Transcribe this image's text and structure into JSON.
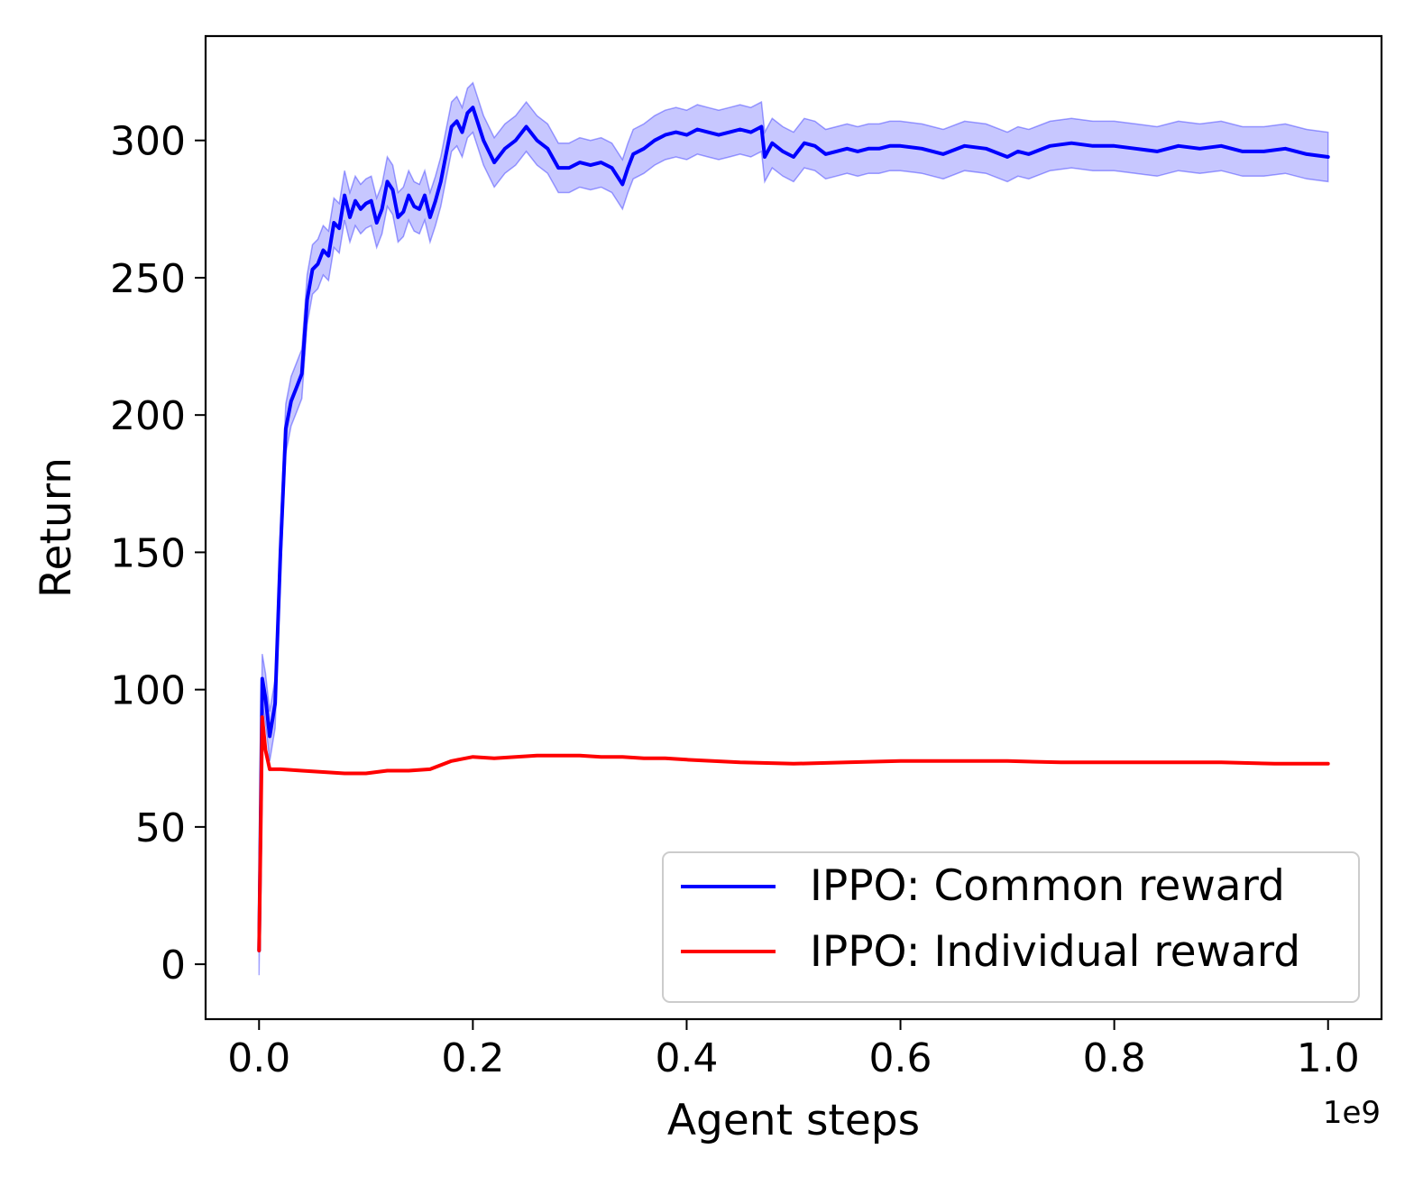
{
  "chart_data": {
    "type": "line",
    "xlabel": "Agent steps",
    "ylabel": "Return",
    "x_offset_text": "1e9",
    "xlim": [
      -0.05,
      1.05
    ],
    "ylim": [
      -20,
      338
    ],
    "x_ticks": [
      0.0,
      0.2,
      0.4,
      0.6,
      0.8,
      1.0
    ],
    "x_tick_labels": [
      "0.0",
      "0.2",
      "0.4",
      "0.6",
      "0.8",
      "1.0"
    ],
    "y_ticks": [
      0,
      50,
      100,
      150,
      200,
      250,
      300
    ],
    "y_tick_labels": [
      "0",
      "50",
      "100",
      "150",
      "200",
      "250",
      "300"
    ],
    "grid": false,
    "legend_position": "lower-right",
    "series": [
      {
        "name": "IPPO: Common reward",
        "color": "#0000ff",
        "band_color": "#0000ff",
        "band_opacity": 0.22,
        "band_halfwidth": 9,
        "x": [
          0.0,
          0.003,
          0.006,
          0.01,
          0.015,
          0.02,
          0.025,
          0.03,
          0.035,
          0.04,
          0.045,
          0.05,
          0.055,
          0.06,
          0.065,
          0.07,
          0.075,
          0.08,
          0.085,
          0.09,
          0.095,
          0.1,
          0.105,
          0.11,
          0.115,
          0.12,
          0.125,
          0.13,
          0.135,
          0.14,
          0.145,
          0.15,
          0.155,
          0.16,
          0.165,
          0.17,
          0.175,
          0.18,
          0.185,
          0.19,
          0.195,
          0.2,
          0.21,
          0.22,
          0.23,
          0.24,
          0.25,
          0.26,
          0.27,
          0.28,
          0.29,
          0.3,
          0.31,
          0.32,
          0.33,
          0.34,
          0.345,
          0.35,
          0.36,
          0.37,
          0.38,
          0.39,
          0.4,
          0.41,
          0.42,
          0.43,
          0.44,
          0.45,
          0.46,
          0.47,
          0.473,
          0.48,
          0.49,
          0.5,
          0.51,
          0.52,
          0.53,
          0.54,
          0.55,
          0.56,
          0.57,
          0.58,
          0.59,
          0.6,
          0.62,
          0.64,
          0.66,
          0.68,
          0.7,
          0.71,
          0.72,
          0.74,
          0.76,
          0.78,
          0.8,
          0.82,
          0.84,
          0.86,
          0.88,
          0.9,
          0.92,
          0.94,
          0.96,
          0.98,
          1.0
        ],
        "y": [
          5,
          104,
          97,
          83,
          95,
          150,
          195,
          205,
          210,
          215,
          242,
          253,
          255,
          260,
          258,
          270,
          268,
          280,
          272,
          278,
          275,
          277,
          278,
          270,
          275,
          285,
          282,
          272,
          274,
          280,
          276,
          275,
          280,
          272,
          278,
          285,
          295,
          305,
          307,
          303,
          310,
          312,
          300,
          292,
          297,
          300,
          305,
          300,
          297,
          290,
          290,
          292,
          291,
          292,
          290,
          284,
          290,
          295,
          297,
          300,
          302,
          303,
          302,
          304,
          303,
          302,
          303,
          304,
          303,
          305,
          294,
          299,
          296,
          294,
          299,
          298,
          295,
          296,
          297,
          296,
          297,
          297,
          298,
          298,
          297,
          295,
          298,
          297,
          294,
          296,
          295,
          298,
          299,
          298,
          298,
          297,
          296,
          298,
          297,
          298,
          296,
          296,
          297,
          295,
          294
        ]
      },
      {
        "name": "IPPO: Individual reward",
        "color": "#ff0000",
        "x": [
          0.0,
          0.003,
          0.006,
          0.01,
          0.02,
          0.04,
          0.06,
          0.08,
          0.1,
          0.12,
          0.14,
          0.16,
          0.18,
          0.2,
          0.22,
          0.24,
          0.26,
          0.28,
          0.3,
          0.32,
          0.34,
          0.36,
          0.38,
          0.4,
          0.45,
          0.5,
          0.55,
          0.6,
          0.65,
          0.7,
          0.75,
          0.8,
          0.85,
          0.9,
          0.95,
          1.0
        ],
        "y": [
          5,
          90,
          78,
          71,
          71,
          70.5,
          70,
          69.5,
          69.5,
          70.5,
          70.5,
          71,
          74,
          75.5,
          75,
          75.5,
          76,
          76,
          76,
          75.5,
          75.5,
          75,
          75,
          74.5,
          73.5,
          73,
          73.5,
          74,
          74,
          74,
          73.5,
          73.5,
          73.5,
          73.5,
          73,
          73
        ]
      }
    ]
  }
}
